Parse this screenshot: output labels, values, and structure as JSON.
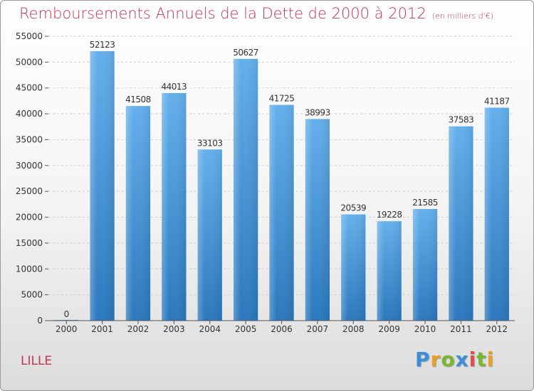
{
  "title": "Remboursements Annuels de la Dette de 2000 à 2012",
  "subtitle": "(en milliers d'€)",
  "city": "LILLE",
  "logo": {
    "letters": [
      "P",
      "r",
      "o",
      "x",
      "i",
      "t",
      "i"
    ],
    "colors": [
      "#3a8fd8",
      "#e8a21f",
      "#79b72e",
      "#3a8fd8",
      "#e54b4b",
      "#79b72e",
      "#e8a21f"
    ]
  },
  "colors": {
    "bar_light": "#64b0ec",
    "bar_dark": "#2a78bd",
    "title": "#c0344f"
  },
  "chart_data": {
    "type": "bar",
    "title": "Remboursements Annuels de la Dette de 2000 à 2012",
    "subtitle": "(en milliers d'€)",
    "categories": [
      "2000",
      "2001",
      "2002",
      "2003",
      "2004",
      "2005",
      "2006",
      "2007",
      "2008",
      "2009",
      "2010",
      "2011",
      "2012"
    ],
    "values": [
      0,
      52123,
      41508,
      44013,
      33103,
      50627,
      41725,
      38993,
      20539,
      19228,
      21585,
      37583,
      41187
    ],
    "ylim": [
      0,
      55000
    ],
    "yticks": [
      0,
      5000,
      10000,
      15000,
      20000,
      25000,
      30000,
      35000,
      40000,
      45000,
      50000,
      55000
    ],
    "grid": true,
    "xlabel": "",
    "ylabel": ""
  }
}
